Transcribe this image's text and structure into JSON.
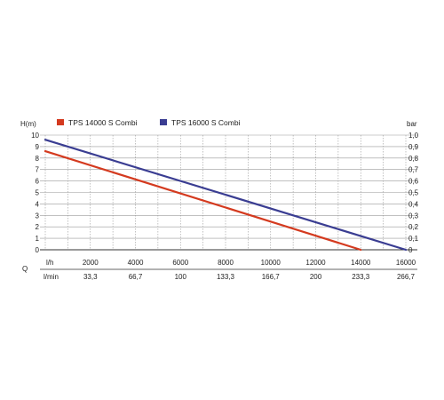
{
  "chart_data": {
    "type": "line",
    "ylabel_left": "H(m)",
    "ylabel_right": "bar",
    "x_axis_symbol": "Q",
    "x_unit_primary": "l/h",
    "x_unit_secondary": "l/min",
    "xlim": [
      0,
      16000
    ],
    "ylim": [
      0,
      10
    ],
    "y2lim": [
      0,
      1.0
    ],
    "x_ticks": [
      0,
      2000,
      4000,
      6000,
      8000,
      10000,
      12000,
      14000,
      16000
    ],
    "x_tick_labels": [
      "",
      "2000",
      "4000",
      "6000",
      "8000",
      "10000",
      "12000",
      "14000",
      "16000"
    ],
    "x_tick_labels_secondary": [
      "",
      "33,3",
      "66,7",
      "100",
      "133,3",
      "166,7",
      "200",
      "233,3",
      "266,7"
    ],
    "y_ticks": [
      0,
      1,
      2,
      3,
      4,
      5,
      6,
      7,
      8,
      9,
      10
    ],
    "y_tick_labels": [
      "0",
      "1",
      "2",
      "3",
      "4",
      "5",
      "6",
      "7",
      "8",
      "9",
      "10"
    ],
    "y2_tick_labels": [
      "0",
      "0,1",
      "0,2",
      "0,3",
      "0,4",
      "0,5",
      "0,6",
      "0,7",
      "0,8",
      "0,9",
      "1,0"
    ],
    "grid": true,
    "legend_position": "top",
    "series": [
      {
        "name": "TPS 14000 S Combi",
        "color": "#d43a1f",
        "x": [
          0,
          14000
        ],
        "y": [
          8.6,
          0
        ]
      },
      {
        "name": "TPS 16000 S Combi",
        "color": "#3a3d92",
        "x": [
          0,
          16000
        ],
        "y": [
          9.6,
          0
        ]
      }
    ]
  }
}
